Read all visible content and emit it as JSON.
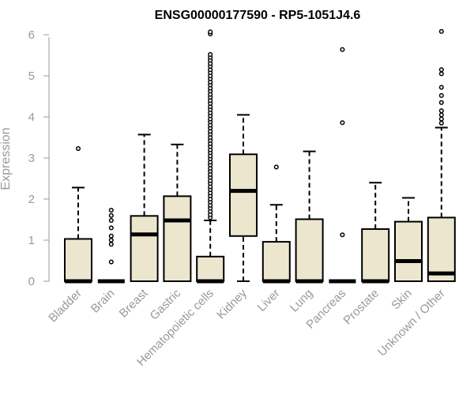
{
  "chart_data": {
    "type": "boxplot",
    "title": "ENSG00000177590 - RP5-1051J4.6",
    "ylabel": "Expression",
    "ylim": [
      0,
      6
    ],
    "yticks": [
      "0",
      "1",
      "2",
      "3",
      "4",
      "5",
      "6"
    ],
    "box_fill": "#ede6cf",
    "median_color": "#000000",
    "categories": [
      "Bladder",
      "Brain",
      "Breast",
      "Gastric",
      "Hematopoietic cells",
      "Kidney",
      "Liver",
      "Lung",
      "Pancreas",
      "Prostate",
      "Skin",
      "Unknown / Other"
    ],
    "boxes": [
      {
        "category": "Bladder",
        "whisker_low": 0,
        "q1": 0,
        "median": 0,
        "q3": 1.03,
        "whisker_high": 2.28,
        "outliers": [
          3.23
        ]
      },
      {
        "category": "Brain",
        "whisker_low": 0,
        "q1": 0,
        "median": 0,
        "q3": 0,
        "whisker_high": 0,
        "outliers": [
          0.47,
          0.9,
          1.0,
          1.1,
          1.3,
          1.48,
          1.6,
          1.73
        ]
      },
      {
        "category": "Breast",
        "whisker_low": 0,
        "q1": 0,
        "median": 1.14,
        "q3": 1.59,
        "whisker_high": 3.57,
        "outliers": []
      },
      {
        "category": "Gastric",
        "whisker_low": 0,
        "q1": 0,
        "median": 1.48,
        "q3": 2.07,
        "whisker_high": 3.33,
        "outliers": []
      },
      {
        "category": "Hematopoietic cells",
        "whisker_low": 0,
        "q1": 0,
        "median": 0,
        "q3": 0.6,
        "whisker_high": 1.48,
        "outliers": [
          1.55,
          1.62,
          1.7,
          1.78,
          1.85,
          1.93,
          2.0,
          2.08,
          2.15,
          2.23,
          2.3,
          2.38,
          2.45,
          2.53,
          2.6,
          2.68,
          2.75,
          2.83,
          2.9,
          2.98,
          3.05,
          3.13,
          3.2,
          3.28,
          3.35,
          3.43,
          3.5,
          3.58,
          3.65,
          3.73,
          3.8,
          3.88,
          3.95,
          4.03,
          4.1,
          4.18,
          4.25,
          4.33,
          4.4,
          4.48,
          4.55,
          4.63,
          4.7,
          4.78,
          4.85,
          4.93,
          5.0,
          5.08,
          5.15,
          5.23,
          5.3,
          5.38,
          5.45,
          5.52,
          6.02,
          6.07
        ]
      },
      {
        "category": "Kidney",
        "whisker_low": 0,
        "q1": 1.1,
        "median": 2.2,
        "q3": 3.09,
        "whisker_high": 4.05,
        "outliers": []
      },
      {
        "category": "Liver",
        "whisker_low": 0,
        "q1": 0,
        "median": 0,
        "q3": 0.96,
        "whisker_high": 1.86,
        "outliers": [
          2.78
        ]
      },
      {
        "category": "Lung",
        "whisker_low": 0,
        "q1": 0,
        "median": 0,
        "q3": 1.51,
        "whisker_high": 3.16,
        "outliers": []
      },
      {
        "category": "Pancreas",
        "whisker_low": 0,
        "q1": 0,
        "median": 0,
        "q3": 0,
        "whisker_high": 0,
        "outliers": [
          1.13,
          3.86,
          5.64
        ]
      },
      {
        "category": "Prostate",
        "whisker_low": 0,
        "q1": 0,
        "median": 0,
        "q3": 1.27,
        "whisker_high": 2.4,
        "outliers": []
      },
      {
        "category": "Skin",
        "whisker_low": 0,
        "q1": 0,
        "median": 0.49,
        "q3": 1.45,
        "whisker_high": 2.03,
        "outliers": []
      },
      {
        "category": "Unknown / Other",
        "whisker_low": 0,
        "q1": 0,
        "median": 0.19,
        "q3": 1.55,
        "whisker_high": 3.74,
        "outliers": [
          3.85,
          3.95,
          4.05,
          4.15,
          4.35,
          4.52,
          4.72,
          5.05,
          5.15,
          6.08
        ]
      }
    ]
  }
}
